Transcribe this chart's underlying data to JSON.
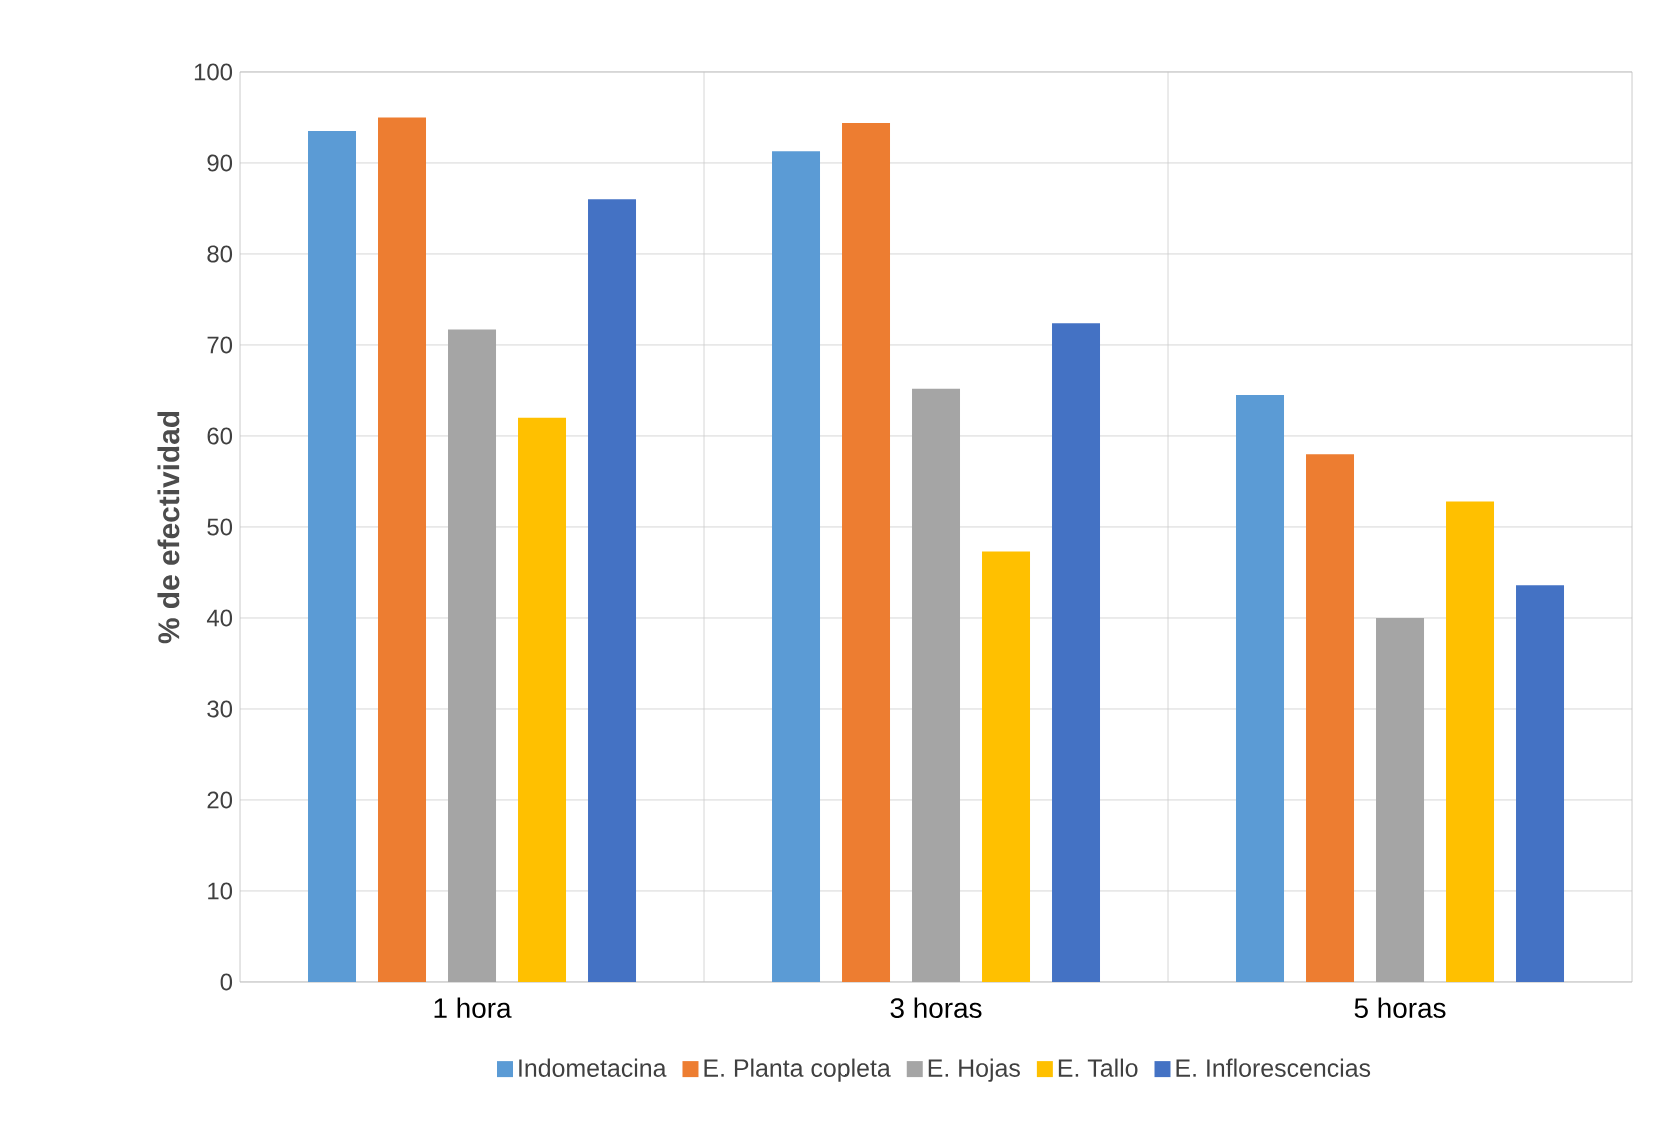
{
  "chart_data": {
    "type": "bar",
    "ylabel": "% de efectividad",
    "categories": [
      "1 hora",
      "3 horas",
      "5 horas"
    ],
    "series": [
      {
        "name": "Indometacina",
        "color": "#5b9bd5",
        "values": [
          93.5,
          91.3,
          64.5
        ]
      },
      {
        "name": "E. Planta copleta",
        "color": "#ed7d31",
        "values": [
          95,
          94.4,
          58
        ]
      },
      {
        "name": "E. Hojas",
        "color": "#a5a5a5",
        "values": [
          71.7,
          65.2,
          40
        ]
      },
      {
        "name": "E. Tallo",
        "color": "#ffc000",
        "values": [
          62,
          47.3,
          52.8
        ]
      },
      {
        "name": "E. Inflorescencias",
        "color": "#4472c4",
        "values": [
          86,
          72.4,
          43.6
        ]
      }
    ],
    "ylim": [
      0,
      100
    ],
    "yticks": [
      0,
      10,
      20,
      30,
      40,
      50,
      60,
      70,
      80,
      90,
      100
    ],
    "grid": true,
    "legend": "bottom"
  }
}
